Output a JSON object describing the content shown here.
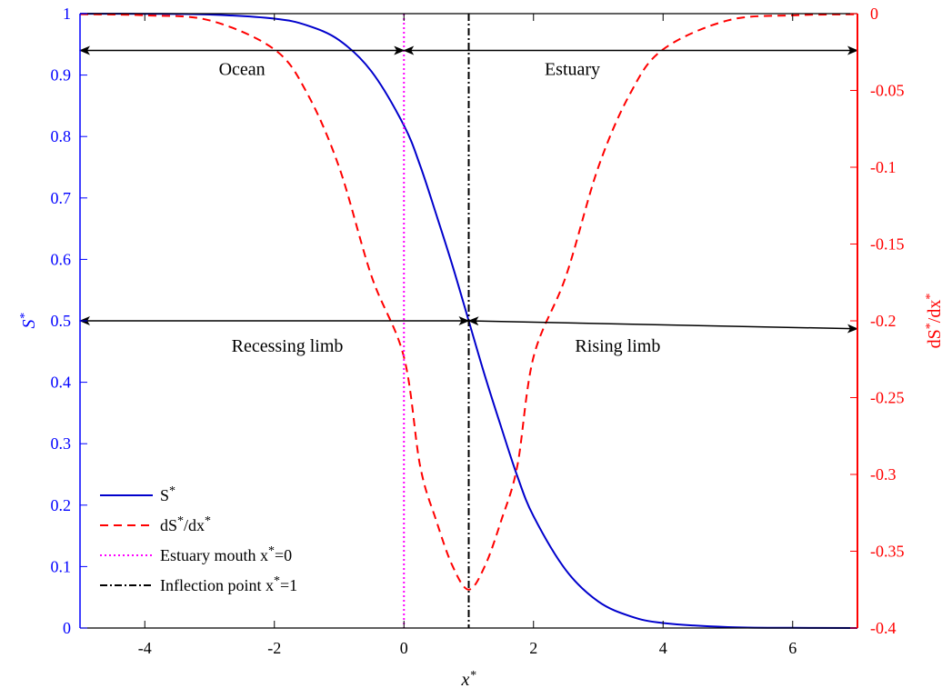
{
  "chart_data": {
    "type": "line",
    "title": "",
    "xlabel": "x*",
    "ylabel_left": "S*",
    "ylabel_right": "dS*/dx*",
    "xlim": [
      -5,
      7
    ],
    "ylim_left": [
      0,
      1
    ],
    "ylim_right": [
      -0.4,
      0
    ],
    "grid": false,
    "legend_position": "bottom-left",
    "x_ticks": [
      -4,
      -2,
      0,
      2,
      4,
      6
    ],
    "x_tick_labels": [
      "-4",
      "-2",
      "0",
      "2",
      "4",
      "6"
    ],
    "y_left_ticks": [
      0,
      0.1,
      0.2,
      0.3,
      0.4,
      0.5,
      0.6,
      0.7,
      0.8,
      0.9,
      1
    ],
    "y_left_tick_labels": [
      "0",
      "0.1",
      "0.2",
      "0.3",
      "0.4",
      "0.5",
      "0.6",
      "0.7",
      "0.8",
      "0.9",
      "1"
    ],
    "y_right_ticks": [
      0,
      -0.05,
      -0.1,
      -0.15,
      -0.2,
      -0.25,
      -0.3,
      -0.35,
      -0.4
    ],
    "y_right_tick_labels": [
      "0",
      "-0.05",
      "-0.1",
      "-0.15",
      "-0.2",
      "-0.25",
      "-0.3",
      "-0.35",
      "-0.4"
    ],
    "series": [
      {
        "name": "S*",
        "axis": "left",
        "color": "#0000cc",
        "style": "solid",
        "x": [
          -5,
          -4,
          -3,
          -2,
          -1.5,
          -1,
          -0.5,
          0,
          0.25,
          0.5,
          0.75,
          1,
          1.25,
          1.5,
          1.75,
          2,
          2.5,
          3,
          3.5,
          4,
          5,
          6,
          7
        ],
        "values": [
          0.9999,
          0.9997,
          0.9985,
          0.9918,
          0.981,
          0.9568,
          0.9058,
          0.818,
          0.7528,
          0.6727,
          0.5896,
          0.5,
          0.4104,
          0.3273,
          0.2472,
          0.182,
          0.0942,
          0.0432,
          0.019,
          0.0082,
          0.0015,
          0.0003,
          0.0
        ]
      },
      {
        "name": "dS*/dx*",
        "axis": "right",
        "color": "#ff0000",
        "style": "dashed",
        "x": [
          -5,
          -4,
          -3,
          -2,
          -1.5,
          -1,
          -0.5,
          0,
          0.25,
          0.5,
          0.75,
          1,
          1.25,
          1.5,
          1.75,
          2,
          2.5,
          3,
          3.5,
          4,
          5,
          6,
          7
        ],
        "values": [
          -0.0004,
          -0.0011,
          -0.0044,
          -0.0233,
          -0.0514,
          -0.1,
          -0.171,
          -0.2236,
          -0.2945,
          -0.3302,
          -0.3596,
          -0.375,
          -0.3596,
          -0.3302,
          -0.2945,
          -0.2236,
          -0.171,
          -0.1,
          -0.0514,
          -0.0233,
          -0.0044,
          -0.0011,
          -0.0004
        ]
      },
      {
        "name": "Estuary mouth x*=0",
        "color": "#ff00ff",
        "style": "dotted",
        "vertical_at": 0
      },
      {
        "name": "Inflection point x*=1",
        "color": "#000000",
        "style": "dashdot",
        "vertical_at": 1
      }
    ],
    "annotations": [
      {
        "text": "Ocean",
        "type": "label",
        "x": -2.5,
        "y_left": 0.9
      },
      {
        "text": "Estuary",
        "type": "label",
        "x": 2.6,
        "y_left": 0.9
      },
      {
        "text": "Recessing limb",
        "type": "label",
        "x": -1.8,
        "y_left": 0.45
      },
      {
        "text": "Rising limb",
        "type": "label",
        "x": 3.3,
        "y_left": 0.45
      },
      {
        "type": "double-arrow",
        "x1": -5,
        "y1_left": 0.94,
        "x2": 0,
        "y2_left": 0.94
      },
      {
        "type": "double-arrow",
        "x1": 0,
        "y1_left": 0.94,
        "x2": 7,
        "y2_left": 0.94
      },
      {
        "type": "double-arrow",
        "x1": -5,
        "y1_left": 0.5,
        "x2": 1,
        "y2_left": 0.5
      },
      {
        "type": "double-arrow",
        "x1": 1,
        "y1_left": 0.5,
        "x2": 7,
        "y2_left": 0.487
      }
    ],
    "colors": {
      "left_axis": "#0000ff",
      "right_axis": "#ff0000",
      "frame": "#000000"
    }
  }
}
